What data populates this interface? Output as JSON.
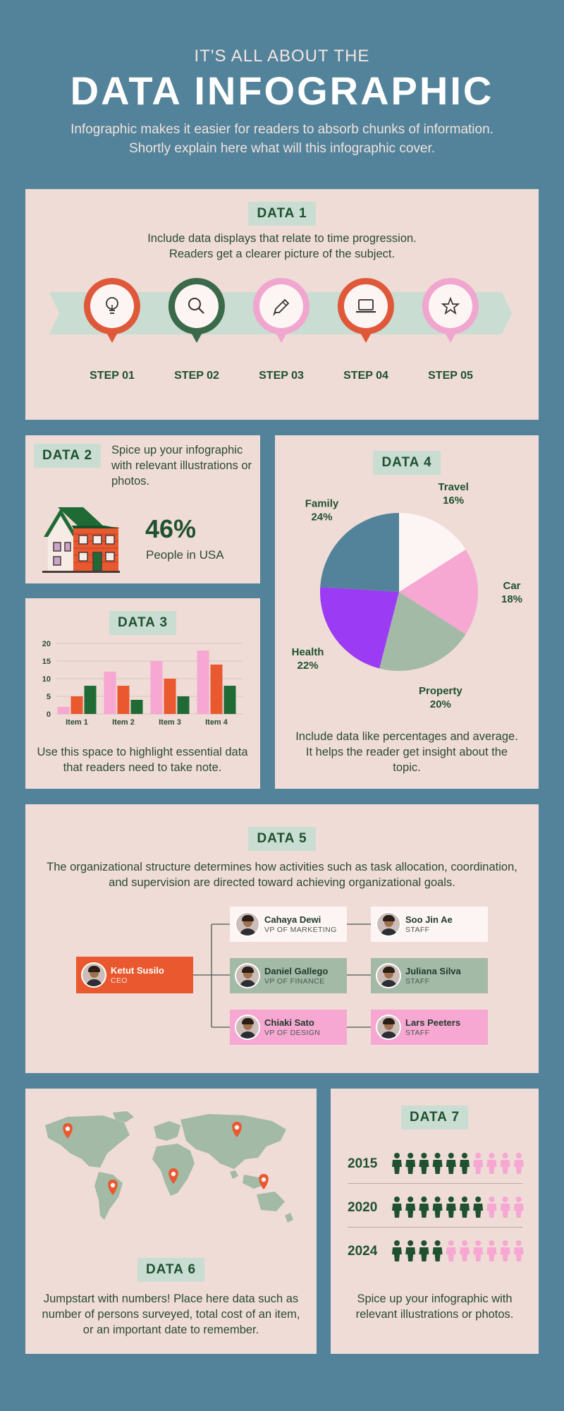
{
  "header": {
    "pre_title": "IT'S ALL ABOUT THE",
    "title": "DATA INFOGRAPHIC",
    "subtitle": "Infographic makes it easier for readers to absorb chunks of information. Shortly explain here what will this infographic cover."
  },
  "data1": {
    "badge": "DATA 1",
    "text": "Include data displays that relate to time progression. Readers get a clearer picture of the subject.",
    "steps": [
      {
        "label": "STEP 01",
        "icon": "lightbulb-icon",
        "color": "#e0583a"
      },
      {
        "label": "STEP 02",
        "icon": "search-icon",
        "color": "#3b6a4a"
      },
      {
        "label": "STEP 03",
        "icon": "pencil-icon",
        "color": "#f0a6cf"
      },
      {
        "label": "STEP 04",
        "icon": "laptop-icon",
        "color": "#e0583a"
      },
      {
        "label": "STEP 05",
        "icon": "star-icon",
        "color": "#f0a6cf"
      }
    ]
  },
  "data2": {
    "badge": "DATA 2",
    "text": "Spice up your infographic with relevant illustrations or photos.",
    "stat": "46%",
    "stat_label": "People in USA"
  },
  "data3": {
    "badge": "DATA 3",
    "text": "Use this space to highlight essential data that readers need to take note."
  },
  "data4": {
    "badge": "DATA 4",
    "text": "Include data like percentages and average. It helps the reader get insight about the topic."
  },
  "data5": {
    "badge": "DATA 5",
    "text": "The organizational structure determines how activities such as task allocation, coordination, and supervision are directed toward achieving organizational goals.",
    "ceo": {
      "name": "Ketut Susilo",
      "role": "CEO"
    },
    "vps": [
      {
        "name": "Cahaya Dewi",
        "role": "VP OF MARKETING",
        "bg": "#fdf5f3"
      },
      {
        "name": "Daniel Gallego",
        "role": "VP OF FINANCE",
        "bg": "#a3baa6"
      },
      {
        "name": "Chiaki Sato",
        "role": "VP OF DESIGN",
        "bg": "#f6a7d2"
      }
    ],
    "staff": [
      {
        "name": "Soo Jin Ae",
        "role": "STAFF",
        "bg": "#fdf5f3"
      },
      {
        "name": "Juliana Silva",
        "role": "STAFF",
        "bg": "#a3baa6"
      },
      {
        "name": "Lars Peeters",
        "role": "STAFF",
        "bg": "#f6a7d2"
      }
    ]
  },
  "data6": {
    "badge": "DATA 6",
    "text": "Jumpstart with numbers! Place here data such as number of persons surveyed, total cost of an item, or an important date to remember."
  },
  "data7": {
    "badge": "DATA 7",
    "rows": [
      {
        "year": "2015",
        "filled": 6,
        "total": 10
      },
      {
        "year": "2020",
        "filled": 7,
        "total": 10
      },
      {
        "year": "2024",
        "filled": 4,
        "total": 10
      }
    ],
    "text": "Spice up your infographic with relevant illustrations or photos."
  },
  "colors": {
    "background": "#52839a",
    "panel": "#efdcd6",
    "dark_green": "#1f5130",
    "orange": "#e9582e",
    "pink": "#f6a7d2",
    "sage": "#a3baa6",
    "purple": "#9b3cf4",
    "steel_blue": "#52839a"
  },
  "chart_data": [
    {
      "type": "bar",
      "categories": [
        "Item 1",
        "Item 2",
        "Item 3",
        "Item 4"
      ],
      "series": [
        {
          "values": [
            2,
            12,
            15,
            18
          ],
          "color": "#f6a7d2"
        },
        {
          "values": [
            5,
            8,
            10,
            14
          ],
          "color": "#e9582e"
        },
        {
          "values": [
            8,
            4,
            5,
            8
          ],
          "color": "#1f6a35"
        }
      ],
      "ylim": [
        0,
        20
      ],
      "yticks": [
        0,
        5,
        10,
        15,
        20
      ],
      "grid": true
    },
    {
      "type": "pie",
      "slices": [
        {
          "label": "Travel",
          "value": 16,
          "display": "16%",
          "color": "#fdf5f3"
        },
        {
          "label": "Car",
          "value": 18,
          "display": "18%",
          "color": "#f6a7d2"
        },
        {
          "label": "Property",
          "value": 20,
          "display": "20%",
          "color": "#a3baa6"
        },
        {
          "label": "Health",
          "value": 22,
          "display": "22%",
          "color": "#9b3cf4"
        },
        {
          "label": "Family",
          "value": 24,
          "display": "24%",
          "color": "#52839a"
        }
      ]
    }
  ]
}
